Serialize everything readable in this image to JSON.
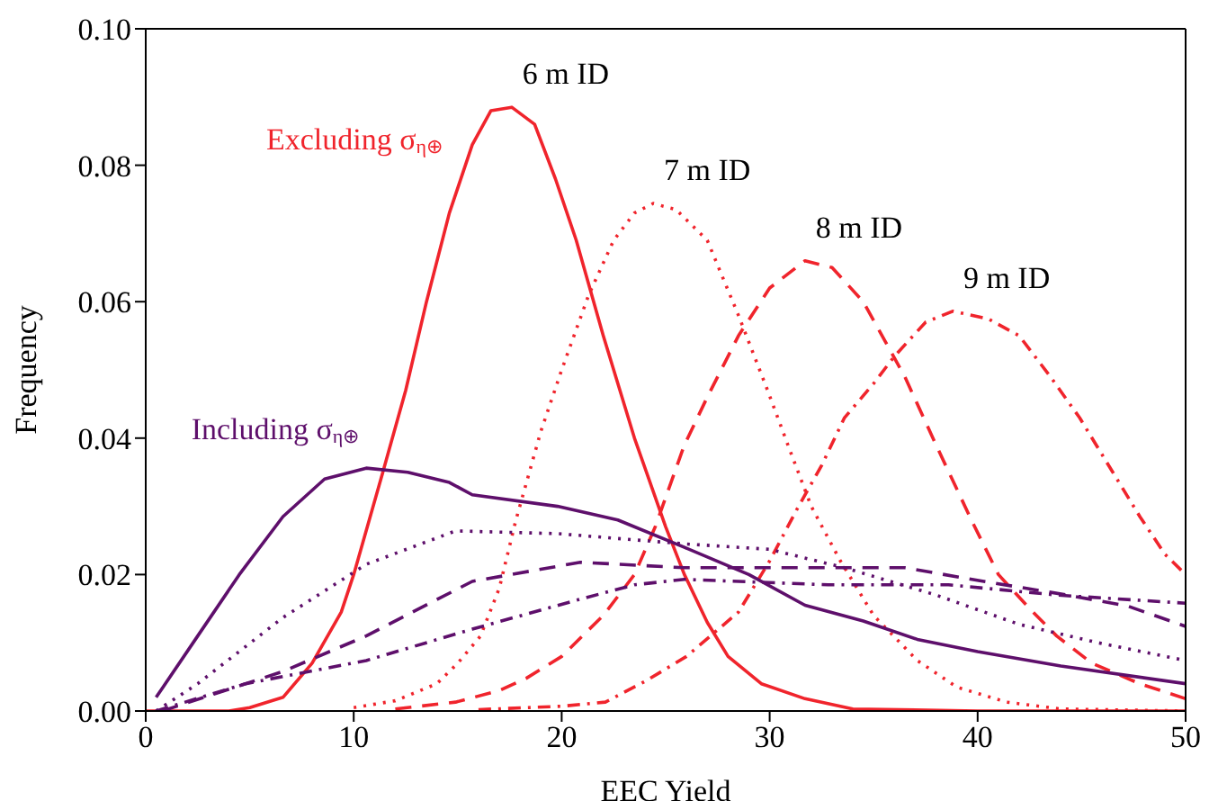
{
  "chart_data": {
    "type": "line",
    "xlabel": "EEC Yield",
    "ylabel": "Frequency",
    "xlim": [
      0,
      50
    ],
    "xticks": [
      0,
      10,
      20,
      30,
      40,
      50
    ],
    "ylim": [
      0,
      0.1
    ],
    "yticks": [
      {
        "value": 0,
        "label": "0.00"
      },
      {
        "value": 0.02,
        "label": "0.02"
      },
      {
        "value": 0.04,
        "label": "0.04"
      },
      {
        "value": 0.06,
        "label": "0.06"
      },
      {
        "value": 0.08,
        "label": "0.08"
      },
      {
        "value": 0.1,
        "label": "0.10"
      }
    ],
    "grid": false,
    "marker": "none",
    "annotations": [
      "Excluding σ$_{η⊕}$",
      "Including σ$_{η⊕}$"
    ],
    "series": [
      {
        "name": "6 m ID",
        "color": "#f0242c",
        "line_style": "solid",
        "x": [
          0,
          4,
          5,
          6.6,
          8,
          9.4,
          10,
          11.4,
          12.5,
          13.5,
          14.6,
          15.7,
          16.6,
          17.6,
          18.7,
          19.7,
          20.7,
          22,
          23.5,
          25,
          25.9,
          27,
          28,
          29.6,
          31.7,
          34,
          40,
          50
        ],
        "values": [
          0,
          0,
          0.0005,
          0.002,
          0.007,
          0.0145,
          0.02,
          0.035,
          0.047,
          0.06,
          0.073,
          0.083,
          0.088,
          0.0885,
          0.086,
          0.078,
          0.069,
          0.055,
          0.04,
          0.027,
          0.02,
          0.013,
          0.008,
          0.004,
          0.0018,
          0.0003,
          0,
          0
        ]
      },
      {
        "name": "7 m ID",
        "color": "#f0242c",
        "line_style": "dotted",
        "x": [
          10,
          12,
          14,
          15,
          16.1,
          17,
          17.8,
          19,
          20,
          21.3,
          22.5,
          23.5,
          24.4,
          25.5,
          27,
          28.5,
          29.9,
          31,
          32,
          33.4,
          35,
          37.1,
          39,
          41.4,
          44,
          50
        ],
        "values": [
          0.0005,
          0.0015,
          0.004,
          0.007,
          0.011,
          0.018,
          0.028,
          0.041,
          0.05,
          0.061,
          0.069,
          0.073,
          0.0744,
          0.0735,
          0.069,
          0.058,
          0.047,
          0.038,
          0.03,
          0.022,
          0.014,
          0.0074,
          0.0035,
          0.0013,
          0.0003,
          0
        ]
      },
      {
        "name": "8 m ID",
        "color": "#f0242c",
        "line_style": "dashed",
        "x": [
          12,
          14.9,
          17,
          18.3,
          20,
          22,
          23.5,
          24.5,
          25.9,
          27,
          28.5,
          30,
          31.7,
          33,
          34.5,
          36.5,
          38,
          39.7,
          41,
          42.5,
          43.8,
          45.5,
          47.8,
          50
        ],
        "values": [
          0.0003,
          0.0013,
          0.003,
          0.0048,
          0.008,
          0.014,
          0.02,
          0.027,
          0.039,
          0.046,
          0.055,
          0.062,
          0.066,
          0.065,
          0.06,
          0.049,
          0.039,
          0.028,
          0.02,
          0.015,
          0.011,
          0.007,
          0.004,
          0.0018
        ]
      },
      {
        "name": "9 m ID",
        "color": "#f0242c",
        "line_style": "dashdot",
        "x": [
          16,
          20,
          22.1,
          24.1,
          26,
          28.5,
          30,
          31.3,
          32.5,
          33.6,
          35,
          36,
          37.5,
          38.8,
          40.5,
          42,
          43.5,
          44.9,
          46.5,
          47.8,
          49,
          50
        ],
        "values": [
          0.0002,
          0.0007,
          0.0013,
          0.0045,
          0.008,
          0.0145,
          0.022,
          0.0295,
          0.036,
          0.043,
          0.048,
          0.052,
          0.057,
          0.0586,
          0.0575,
          0.055,
          0.049,
          0.043,
          0.035,
          0.0285,
          0.023,
          0.02
        ]
      },
      {
        "color": "#5e0f6b",
        "line_style": "solid",
        "x": [
          0.5,
          2.5,
          4.5,
          6.6,
          8.6,
          10.6,
          12.6,
          14.6,
          15.7,
          19.8,
          22.7,
          25.9,
          29,
          31.7,
          34.5,
          37.1,
          40,
          44,
          50
        ],
        "values": [
          0.002,
          0.011,
          0.02,
          0.0285,
          0.034,
          0.0356,
          0.035,
          0.0335,
          0.0317,
          0.03,
          0.028,
          0.024,
          0.02,
          0.0155,
          0.0132,
          0.0105,
          0.0087,
          0.0066,
          0.004
        ]
      },
      {
        "color": "#5e0f6b",
        "line_style": "dotted",
        "x": [
          0.5,
          2.5,
          6.6,
          10.6,
          14.9,
          19.8,
          25.9,
          30,
          33.6,
          38,
          42,
          45.8,
          50
        ],
        "values": [
          0,
          0.004,
          0.0137,
          0.0215,
          0.0264,
          0.026,
          0.0245,
          0.0237,
          0.021,
          0.017,
          0.0127,
          0.01,
          0.0074
        ]
      },
      {
        "color": "#5e0f6b",
        "line_style": "dashed",
        "x": [
          0.8,
          6.6,
          10.6,
          15.7,
          20.9,
          25.9,
          32.8,
          36.5,
          40.3,
          44.3,
          47.2,
          50
        ],
        "values": [
          0,
          0.0058,
          0.011,
          0.019,
          0.0218,
          0.021,
          0.021,
          0.021,
          0.019,
          0.017,
          0.0154,
          0.0124
        ]
      },
      {
        "color": "#5e0f6b",
        "line_style": "dashdot",
        "x": [
          0.5,
          4.8,
          10.6,
          15.7,
          20.9,
          23.5,
          25.9,
          32.8,
          38.6,
          43.8,
          50
        ],
        "values": [
          0,
          0.004,
          0.0074,
          0.012,
          0.0164,
          0.0185,
          0.0193,
          0.0185,
          0.0185,
          0.017,
          0.0158
        ]
      }
    ]
  }
}
